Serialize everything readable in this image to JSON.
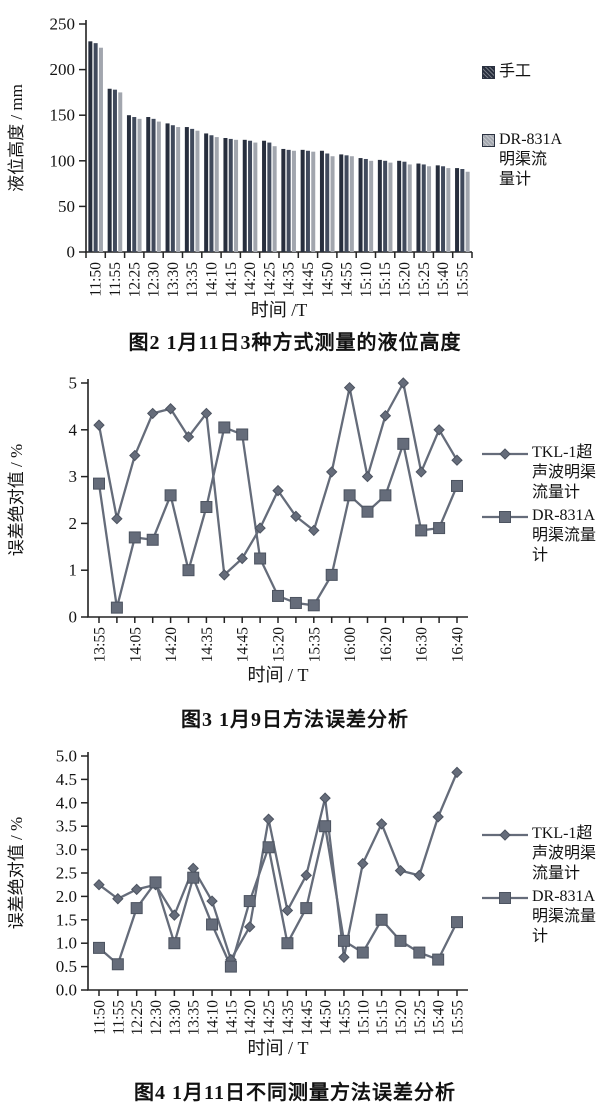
{
  "chart_data": [
    {
      "type": "bar",
      "caption": "图2  1月11日3种方式测量的液位高度",
      "ylabel": "液位高度 / mm",
      "xlabel": "时间 /T",
      "ylim": [
        0,
        250
      ],
      "yticks": [
        "0",
        "50",
        "100",
        "150",
        "200",
        "250"
      ],
      "grid": false,
      "legend_position": "right",
      "categories": [
        "11:50",
        "11:55",
        "12:25",
        "12:30",
        "13:30",
        "13:35",
        "14:10",
        "14:15",
        "14:20",
        "14:25",
        "14:35",
        "14:45",
        "14:50",
        "14:55",
        "15:10",
        "15:15",
        "15:20",
        "15:25",
        "15:40",
        "15:55"
      ],
      "series": [
        {
          "name": "手工",
          "color": "#272e3d",
          "values": [
            231,
            179,
            150,
            148,
            141,
            137,
            130,
            125,
            123,
            122,
            113,
            112,
            111,
            107,
            103,
            101,
            100,
            97,
            95,
            92
          ]
        },
        {
          "name": "",
          "color": "#414a5c",
          "values": [
            229,
            178,
            148,
            146,
            139,
            135,
            128,
            124,
            122,
            120,
            112,
            111,
            108,
            106,
            102,
            100,
            99,
            96,
            94,
            91
          ]
        },
        {
          "name": "DR-831A明渠流量计",
          "color": "#a2a6ae",
          "values": [
            224,
            175,
            146,
            143,
            137,
            133,
            126,
            123,
            120,
            116,
            111,
            110,
            105,
            105,
            100,
            98,
            96,
            94,
            92,
            88
          ]
        }
      ],
      "legend": [
        {
          "label": "手工",
          "series": 0
        },
        {
          "label": "DR-831A\n明渠流\n量计",
          "series": 2
        }
      ]
    },
    {
      "type": "line",
      "caption": "图3  1月9日方法误差分析",
      "ylabel": "误差绝对值 / %",
      "xlabel": "时间 / T",
      "ylim": [
        0,
        5
      ],
      "yticks": [
        "0",
        "1",
        "2",
        "3",
        "4",
        "5"
      ],
      "grid": false,
      "legend_position": "right",
      "categories": [
        "13:55",
        "",
        "14:05",
        "",
        "14:20",
        "",
        "14:35",
        "",
        "14:45",
        "",
        "15:20",
        "",
        "15:35",
        "",
        "16:00",
        "",
        "16:20",
        "",
        "16:30",
        "",
        "16:40"
      ],
      "series": [
        {
          "name": "TKL-1超声波明渠流量计",
          "marker": "diamond",
          "color": "#656c7a",
          "values": [
            4.1,
            2.1,
            3.45,
            4.35,
            4.45,
            3.85,
            4.35,
            0.9,
            1.25,
            1.9,
            2.7,
            2.15,
            1.85,
            3.1,
            4.9,
            3.0,
            4.3,
            5.0,
            3.1,
            4.0,
            3.35
          ]
        },
        {
          "name": "DR-831A明渠流量计",
          "marker": "square",
          "color": "#656c7a",
          "values": [
            2.85,
            0.2,
            1.7,
            1.65,
            2.6,
            1.0,
            2.35,
            4.05,
            3.9,
            1.25,
            0.45,
            0.3,
            0.25,
            0.9,
            2.6,
            2.25,
            2.6,
            3.7,
            1.85,
            1.9,
            2.8
          ]
        }
      ],
      "legend": [
        {
          "label": "TKL-1超\n声波明渠\n流量计",
          "series": 0
        },
        {
          "label": "DR-831A\n明渠流量\n计",
          "series": 1
        }
      ]
    },
    {
      "type": "line",
      "caption": "图4  1月11日不同测量方法误差分析",
      "ylabel": "误差绝对值 / %",
      "xlabel": "时间 / T",
      "ylim": [
        0,
        5
      ],
      "yticks": [
        "0.0",
        "0.5",
        "1.0",
        "1.5",
        "2.0",
        "2.5",
        "3.0",
        "3.5",
        "4.0",
        "4.5",
        "5.0"
      ],
      "grid": false,
      "legend_position": "right",
      "categories": [
        "11:50",
        "11:55",
        "12:25",
        "12:30",
        "13:30",
        "13:35",
        "14:10",
        "14:15",
        "14:20",
        "14:25",
        "14:35",
        "14:45",
        "14:50",
        "14:55",
        "15:10",
        "15:15",
        "15:20",
        "15:25",
        "15:40",
        "15:55"
      ],
      "series": [
        {
          "name": "TKL-1超声波明渠流量计",
          "marker": "diamond",
          "color": "#656c7a",
          "values": [
            2.25,
            1.95,
            2.15,
            2.25,
            1.6,
            2.6,
            1.9,
            0.65,
            1.35,
            3.65,
            1.7,
            2.45,
            4.1,
            0.7,
            2.7,
            3.55,
            2.55,
            2.45,
            3.7,
            4.65
          ]
        },
        {
          "name": "DR-831A明渠流量计",
          "marker": "square",
          "color": "#656c7a",
          "values": [
            0.9,
            0.55,
            1.75,
            2.3,
            1.0,
            2.4,
            1.4,
            0.5,
            1.9,
            3.05,
            1.0,
            1.75,
            3.5,
            1.05,
            0.8,
            1.5,
            1.05,
            0.8,
            0.65,
            1.45
          ]
        }
      ],
      "legend": [
        {
          "label": "TKL-1超\n声波明渠\n流量计",
          "series": 0
        },
        {
          "label": "DR-831A\n明渠流量\n计",
          "series": 1
        }
      ]
    }
  ]
}
